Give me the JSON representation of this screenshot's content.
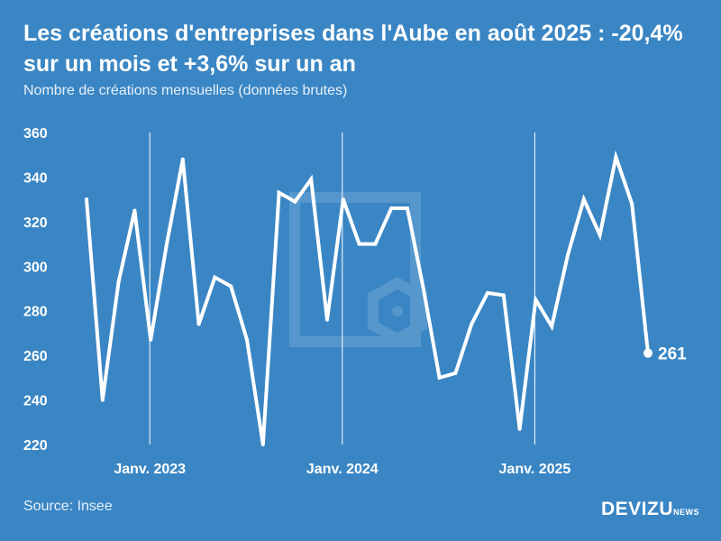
{
  "header": {
    "title": "Les créations d'entreprises dans l'Aube en août 2025 : -20,4% sur un mois et +3,6% sur un an",
    "subtitle": "Nombre de créations mensuelles (données brutes)"
  },
  "footer": {
    "source": "Source: Insee",
    "logo_main": "DEVIZU",
    "logo_sub": "NEWS"
  },
  "colors": {
    "background": "#3a86c4",
    "line": "#ffffff"
  },
  "chart_data": {
    "type": "line",
    "title": "Les créations d'entreprises dans l'Aube en août 2025 : -20,4% sur un mois et +3,6% sur un an",
    "ylabel": "Nombre de créations mensuelles (données brutes)",
    "xlabel": "",
    "ylim": [
      220,
      360
    ],
    "yticks": [
      220,
      240,
      260,
      280,
      300,
      320,
      340,
      360
    ],
    "xticks": [
      {
        "label": "Janv. 2023",
        "index": 4
      },
      {
        "label": "Janv. 2024",
        "index": 16
      },
      {
        "label": "Janv. 2025",
        "index": 28
      }
    ],
    "series": [
      {
        "name": "Créations",
        "values": [
          330,
          240,
          293,
          325,
          267,
          310,
          348,
          274,
          295,
          291,
          267,
          220,
          333,
          329,
          339,
          276,
          330,
          310,
          310,
          326,
          326,
          290,
          250,
          252,
          274,
          288,
          287,
          227,
          285,
          273,
          305,
          330,
          314,
          349,
          328,
          261
        ]
      }
    ],
    "last_label": "261"
  }
}
